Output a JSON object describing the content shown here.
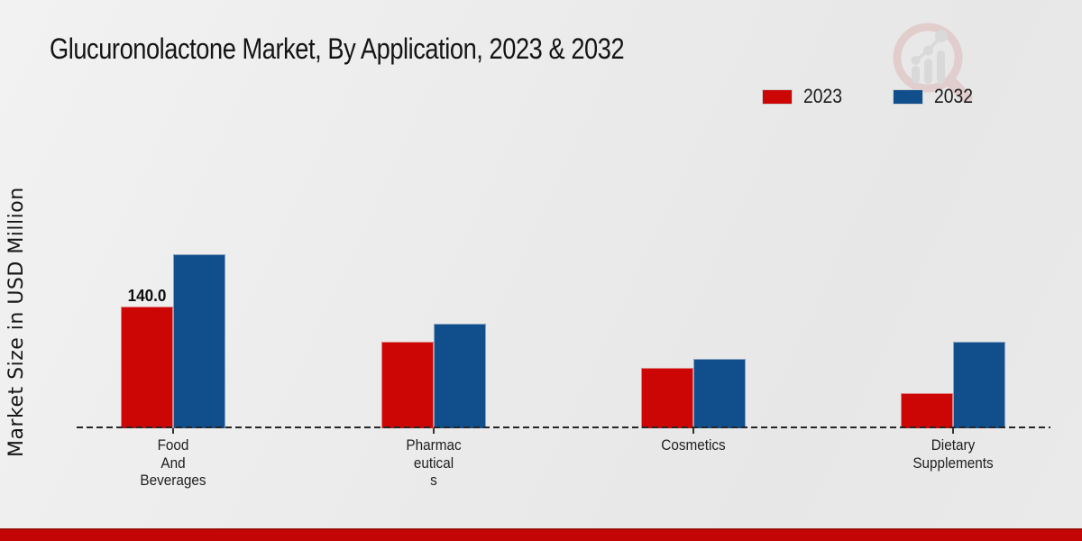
{
  "title": "Glucuronolactone Market, By Application, 2023 & 2032",
  "ylabel": "Market Size in USD Million",
  "legend": [
    {
      "label": "2023",
      "color": "#cc0505"
    },
    {
      "label": "2032",
      "color": "#114e8c"
    }
  ],
  "colors": {
    "bar_2023": "#cc0505",
    "bar_2032": "#114e8c",
    "footer_bar": "#c30505",
    "axis_line": "#262626",
    "background": "#ebebeb",
    "watermark_pink": "#dfc0c0",
    "watermark_gray": "#d2d2d2"
  },
  "watermark_icon": "magnifying-glass-with-bar-chart",
  "chart_data": {
    "type": "bar",
    "title": "Glucuronolactone Market, By Application, 2023 & 2032",
    "xlabel": "",
    "ylabel": "Market Size in USD Million",
    "categories": [
      "Food And Beverages",
      "Pharmaceuticals",
      "Cosmetics",
      "Dietary Supplements"
    ],
    "categories_wrapped": [
      [
        "Food",
        "And",
        "Beverages"
      ],
      [
        "Pharmac",
        "eutical",
        "s"
      ],
      [
        "Cosmetics"
      ],
      [
        "Dietary",
        "Supplements"
      ]
    ],
    "series": [
      {
        "name": "2023",
        "color": "#cc0505",
        "values": [
          140.0,
          100.0,
          70.0,
          40.0
        ]
      },
      {
        "name": "2032",
        "color": "#114e8c",
        "values": [
          200.0,
          120.0,
          80.0,
          100.0
        ]
      }
    ],
    "annotations": [
      {
        "group": 0,
        "series": 0,
        "text": "140.0"
      }
    ],
    "ylim": [
      0,
      210
    ],
    "grid": false,
    "y_axis_ticks_visible": false,
    "baseline_style": "dashed",
    "legend_position": "top-right"
  },
  "footer": {
    "type": "solid-red-band"
  }
}
